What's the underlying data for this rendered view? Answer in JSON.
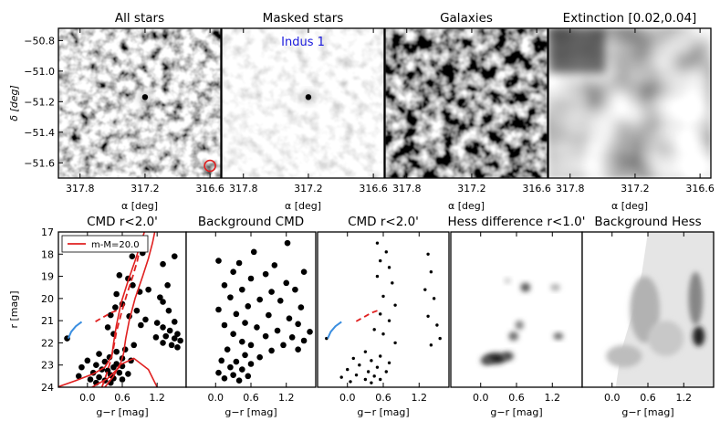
{
  "colors": {
    "annotation": "#1a1adc",
    "isochrone_red": "#e02020",
    "hb_blue": "#3a8ee0",
    "circle": "#e02020"
  },
  "chart_data": [
    {
      "type": "heatmap",
      "title": "All stars",
      "xlabel": "α [deg]",
      "ylabel": "δ [deg]",
      "x_ticks": [
        "317.8",
        "317.2",
        "316.6"
      ],
      "y_ticks": [
        "−50.8",
        "−51.0",
        "−51.2",
        "−51.4",
        "−51.6"
      ],
      "xlim": [
        318.0,
        316.5
      ],
      "ylim": [
        -51.7,
        -50.72
      ],
      "texture": "noise",
      "hotspot": [
        317.2,
        -51.17
      ],
      "circle_marker": [
        316.6,
        -51.62
      ]
    },
    {
      "type": "heatmap",
      "title": "Masked stars",
      "xlabel": "α [deg]",
      "x_ticks": [
        "317.8",
        "317.2",
        "316.6"
      ],
      "annotation": "Indus 1",
      "texture": "faint",
      "hotspot": [
        317.2,
        -51.17
      ]
    },
    {
      "type": "heatmap",
      "title": "Galaxies",
      "xlabel": "α [deg]",
      "x_ticks": [
        "317.8",
        "317.2",
        "316.6"
      ],
      "texture": "noise"
    },
    {
      "type": "heatmap",
      "title": "Extinction [0.02,0.04]",
      "xlabel": "α [deg]",
      "x_ticks": [
        "317.8",
        "317.2",
        "316.6"
      ],
      "texture": "smooth"
    },
    {
      "type": "scatter",
      "title": "CMD r<2.0'",
      "xlabel": "g−r [mag]",
      "ylabel": "r [mag]",
      "x_ticks": [
        "0.0",
        "0.6",
        "1.2"
      ],
      "y_ticks": [
        "17",
        "18",
        "19",
        "20",
        "21",
        "22",
        "23",
        "24"
      ],
      "xlim": [
        -0.5,
        1.7
      ],
      "ylim": [
        24,
        17
      ],
      "legend": "m-M=20.0",
      "isochrone": true,
      "selection_box": true,
      "marker": "large",
      "points": [
        [
          0.95,
          17.95
        ],
        [
          0.77,
          18.1
        ],
        [
          1.5,
          18.1
        ],
        [
          1.3,
          18.45
        ],
        [
          0.55,
          18.95
        ],
        [
          0.7,
          19.1
        ],
        [
          0.78,
          19.4
        ],
        [
          1.38,
          19.4
        ],
        [
          1.05,
          19.6
        ],
        [
          0.9,
          19.7
        ],
        [
          0.5,
          19.8
        ],
        [
          1.25,
          19.95
        ],
        [
          1.3,
          20.15
        ],
        [
          0.6,
          20.25
        ],
        [
          0.48,
          20.4
        ],
        [
          0.85,
          20.55
        ],
        [
          1.4,
          20.55
        ],
        [
          0.4,
          20.75
        ],
        [
          0.72,
          20.8
        ],
        [
          1.0,
          20.95
        ],
        [
          1.2,
          21.1
        ],
        [
          1.5,
          21.05
        ],
        [
          0.92,
          21.2
        ],
        [
          1.3,
          21.3
        ],
        [
          0.35,
          21.3
        ],
        [
          1.42,
          21.45
        ],
        [
          1.55,
          21.6
        ],
        [
          0.45,
          21.6
        ],
        [
          1.18,
          21.75
        ],
        [
          1.35,
          21.7
        ],
        [
          -0.35,
          21.8
        ],
        [
          1.5,
          21.8
        ],
        [
          1.6,
          21.9
        ],
        [
          1.3,
          22.0
        ],
        [
          0.8,
          22.1
        ],
        [
          0.65,
          22.3
        ],
        [
          1.45,
          22.1
        ],
        [
          1.55,
          22.2
        ],
        [
          0.5,
          22.4
        ],
        [
          0.2,
          22.5
        ],
        [
          0.38,
          22.65
        ],
        [
          0.6,
          22.7
        ],
        [
          0.0,
          22.8
        ],
        [
          0.3,
          22.85
        ],
        [
          0.75,
          22.8
        ],
        [
          0.5,
          22.95
        ],
        [
          0.15,
          23.0
        ],
        [
          0.45,
          23.1
        ],
        [
          0.6,
          23.05
        ],
        [
          -0.1,
          23.1
        ],
        [
          0.25,
          23.2
        ],
        [
          0.35,
          23.25
        ],
        [
          0.1,
          23.35
        ],
        [
          0.55,
          23.35
        ],
        [
          0.4,
          23.45
        ],
        [
          0.7,
          23.4
        ],
        [
          -0.15,
          23.5
        ],
        [
          0.2,
          23.55
        ],
        [
          0.45,
          23.6
        ],
        [
          0.05,
          23.65
        ],
        [
          0.3,
          23.7
        ],
        [
          0.6,
          23.65
        ],
        [
          0.15,
          23.8
        ],
        [
          0.4,
          23.8
        ]
      ]
    },
    {
      "type": "scatter",
      "title": "Background CMD",
      "xlabel": "g−r [mag]",
      "x_ticks": [
        "0.0",
        "0.6",
        "1.2"
      ],
      "marker": "large",
      "points": [
        [
          1.22,
          17.5
        ],
        [
          0.65,
          17.9
        ],
        [
          0.05,
          18.3
        ],
        [
          0.4,
          18.4
        ],
        [
          1.0,
          18.5
        ],
        [
          0.3,
          18.8
        ],
        [
          0.85,
          18.9
        ],
        [
          1.5,
          18.8
        ],
        [
          0.6,
          19.1
        ],
        [
          0.15,
          19.4
        ],
        [
          1.2,
          19.3
        ],
        [
          0.45,
          19.6
        ],
        [
          0.95,
          19.7
        ],
        [
          1.35,
          19.6
        ],
        [
          0.25,
          19.95
        ],
        [
          0.75,
          20.05
        ],
        [
          1.1,
          20.1
        ],
        [
          0.55,
          20.35
        ],
        [
          0.05,
          20.5
        ],
        [
          1.45,
          20.4
        ],
        [
          0.35,
          20.7
        ],
        [
          0.9,
          20.75
        ],
        [
          1.25,
          20.9
        ],
        [
          0.5,
          21.1
        ],
        [
          0.15,
          21.2
        ],
        [
          0.7,
          21.3
        ],
        [
          1.4,
          21.15
        ],
        [
          1.05,
          21.45
        ],
        [
          0.3,
          21.6
        ],
        [
          1.6,
          21.5
        ],
        [
          0.85,
          21.7
        ],
        [
          1.3,
          21.75
        ],
        [
          0.45,
          21.95
        ],
        [
          1.5,
          21.9
        ],
        [
          0.6,
          22.1
        ],
        [
          1.15,
          22.1
        ],
        [
          0.2,
          22.3
        ],
        [
          0.95,
          22.35
        ],
        [
          1.4,
          22.3
        ],
        [
          0.5,
          22.55
        ],
        [
          0.75,
          22.65
        ],
        [
          0.1,
          22.8
        ],
        [
          0.35,
          22.85
        ],
        [
          0.6,
          22.95
        ],
        [
          0.25,
          23.1
        ],
        [
          0.45,
          23.2
        ],
        [
          0.05,
          23.35
        ],
        [
          0.3,
          23.45
        ],
        [
          0.55,
          23.5
        ],
        [
          0.15,
          23.6
        ],
        [
          0.4,
          23.7
        ]
      ]
    },
    {
      "type": "scatter",
      "title": "CMD r<2.0'",
      "xlabel": "g−r [mag]",
      "x_ticks": [
        "0.0",
        "0.6",
        "1.2"
      ],
      "isochrone": true,
      "marker": "small",
      "points": [
        [
          0.5,
          17.5
        ],
        [
          0.65,
          17.9
        ],
        [
          1.35,
          18.0
        ],
        [
          0.55,
          18.3
        ],
        [
          0.7,
          18.6
        ],
        [
          1.4,
          18.8
        ],
        [
          0.5,
          19.0
        ],
        [
          0.75,
          19.3
        ],
        [
          1.3,
          19.6
        ],
        [
          0.6,
          19.9
        ],
        [
          1.45,
          20.0
        ],
        [
          0.8,
          20.3
        ],
        [
          0.55,
          20.7
        ],
        [
          1.35,
          20.8
        ],
        [
          0.7,
          21.0
        ],
        [
          1.5,
          21.2
        ],
        [
          0.45,
          21.4
        ],
        [
          0.6,
          21.6
        ],
        [
          1.55,
          21.8
        ],
        [
          0.8,
          22.0
        ],
        [
          -0.35,
          21.8
        ],
        [
          1.4,
          22.1
        ],
        [
          0.3,
          22.4
        ],
        [
          0.55,
          22.6
        ],
        [
          0.1,
          22.7
        ],
        [
          0.4,
          22.8
        ],
        [
          0.7,
          22.9
        ],
        [
          0.2,
          23.0
        ],
        [
          0.5,
          23.1
        ],
        [
          0.0,
          23.2
        ],
        [
          0.35,
          23.3
        ],
        [
          0.65,
          23.3
        ],
        [
          0.15,
          23.45
        ],
        [
          0.45,
          23.5
        ],
        [
          -0.1,
          23.55
        ],
        [
          0.3,
          23.65
        ],
        [
          0.55,
          23.65
        ],
        [
          0.05,
          23.75
        ],
        [
          0.4,
          23.8
        ]
      ]
    },
    {
      "type": "heatmap",
      "title": "Hess difference r<1.0'",
      "xlabel": "g−r [mag]",
      "x_ticks": [
        "0.0",
        "0.6",
        "1.2"
      ],
      "blobs": [
        [
          0.25,
          22.7,
          0.18,
          0.25,
          1.0
        ],
        [
          0.1,
          22.8,
          0.1,
          0.2,
          0.8
        ],
        [
          0.45,
          22.6,
          0.1,
          0.2,
          0.85
        ],
        [
          0.55,
          21.7,
          0.08,
          0.2,
          0.7
        ],
        [
          0.65,
          21.2,
          0.07,
          0.2,
          0.6
        ],
        [
          0.75,
          19.5,
          0.08,
          0.2,
          0.8
        ],
        [
          1.3,
          21.7,
          0.08,
          0.15,
          0.75
        ],
        [
          1.25,
          19.5,
          0.08,
          0.15,
          0.4
        ],
        [
          0.45,
          19.2,
          0.05,
          0.12,
          0.3
        ]
      ]
    },
    {
      "type": "heatmap",
      "title": "Background Hess",
      "xlabel": "g−r [mag]",
      "x_ticks": [
        "0.0",
        "0.6",
        "1.2"
      ],
      "blobs": [
        [
          1.45,
          21.7,
          0.1,
          0.45,
          1.0
        ],
        [
          1.4,
          20.0,
          0.12,
          1.2,
          0.55
        ],
        [
          0.55,
          20.5,
          0.25,
          1.5,
          0.35
        ],
        [
          0.2,
          22.6,
          0.3,
          0.5,
          0.3
        ],
        [
          0.9,
          21.8,
          0.3,
          0.8,
          0.25
        ]
      ]
    }
  ]
}
